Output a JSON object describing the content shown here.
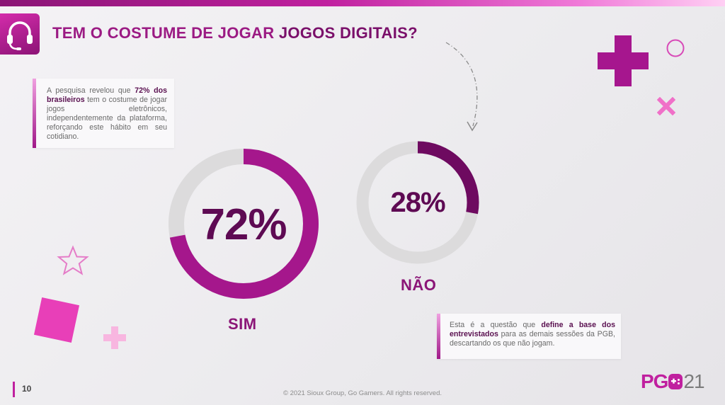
{
  "header": {
    "title_plain": "TEM O COSTUME DE JOGAR ",
    "title_strong": "JOGOS DIGITAIS?"
  },
  "intro": {
    "text_before": "A pesquisa revelou que ",
    "highlight": "72% dos brasileiros",
    "text_after": " tem o costume de jogar jogos eletrônicos, independentemente da plataforma, reforçando este hábito em seu cotidiano."
  },
  "note": {
    "text_before": "Esta é a questão que ",
    "highlight": "define a base dos entrevistados",
    "text_after": " para as demais sessões da PGB, descartando os que não jogam."
  },
  "chart_data": {
    "type": "pie",
    "categories": [
      "SIM",
      "NÃO"
    ],
    "values": [
      72,
      28
    ],
    "value_labels": [
      "72%",
      "28%"
    ]
  },
  "footer": {
    "page_number": "10",
    "copyright": "© 2021 Sioux Group, Go Gamers. All rights reserved.",
    "brand_left": "PG",
    "brand_right": "21"
  },
  "colors": {
    "accent": "#c0209f",
    "dark": "#5e0a53",
    "sim_ring": "#a5178c",
    "nao_ring": "#6e0a60",
    "track": "#dcdbdc"
  },
  "icons": {
    "header": "headset-icon",
    "brand": "gamepad-icon"
  }
}
